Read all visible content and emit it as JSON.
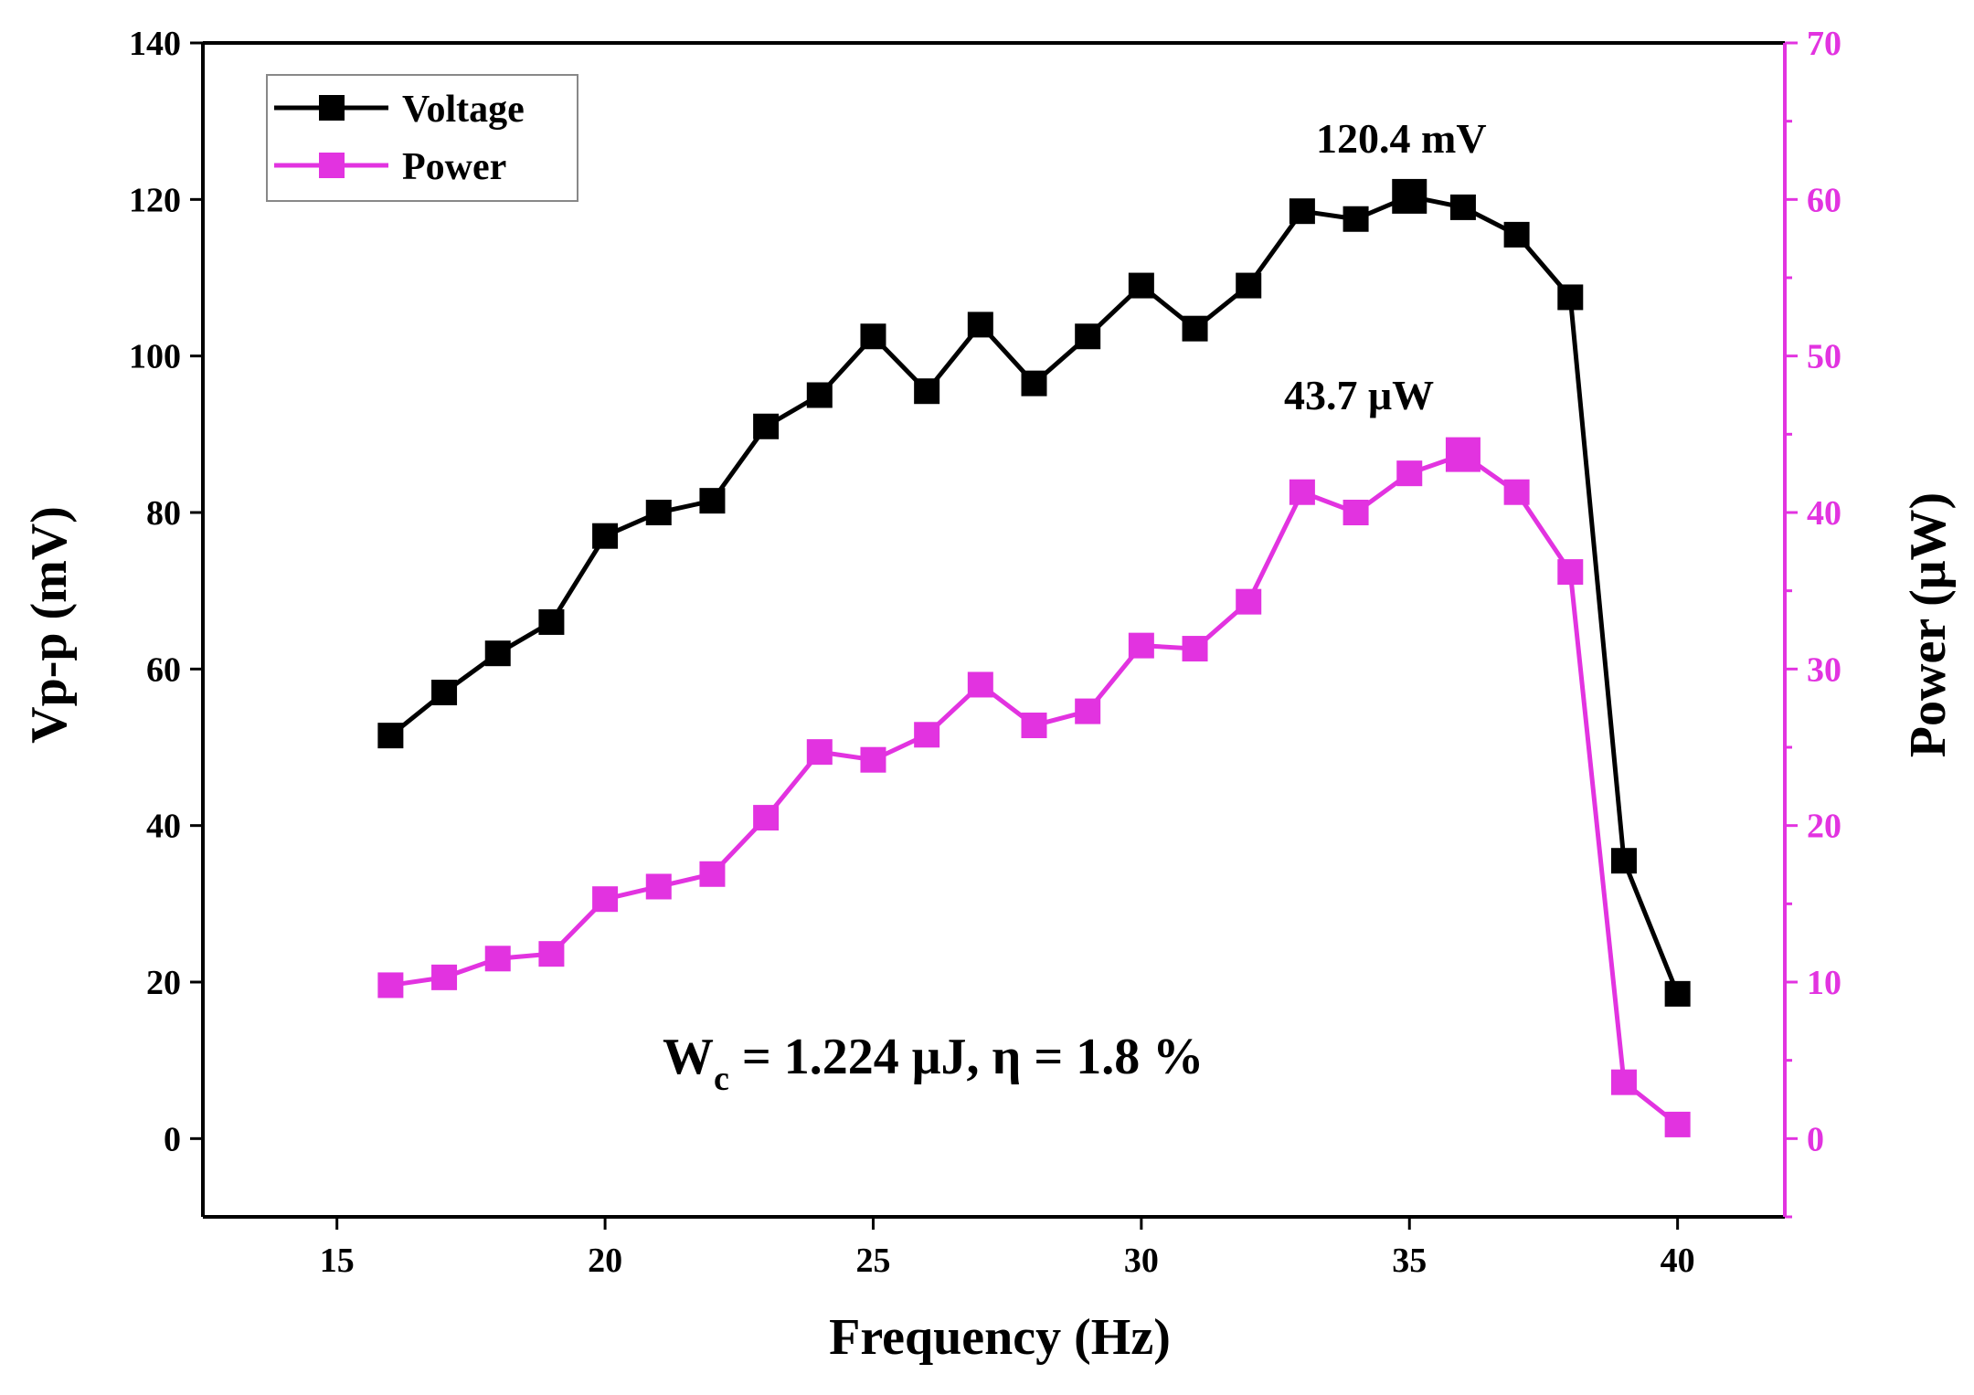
{
  "chart_data": {
    "type": "line",
    "x": [
      16,
      17,
      18,
      19,
      20,
      21,
      22,
      23,
      24,
      25,
      26,
      27,
      28,
      29,
      30,
      31,
      32,
      33,
      34,
      35,
      36,
      37,
      38,
      39,
      40
    ],
    "xlabel": "Frequency (Hz)",
    "xlim": [
      12.5,
      42
    ],
    "xticks": [
      15,
      20,
      25,
      30,
      35,
      40
    ],
    "y_left": {
      "label": "Vp-p (mV)",
      "lim": [
        -10,
        140
      ],
      "ticks": [
        0,
        20,
        40,
        60,
        80,
        100,
        120,
        140
      ],
      "color": "#000000"
    },
    "y_right": {
      "label": "Power (μW)",
      "lim": [
        -5,
        70
      ],
      "ticks": [
        0,
        10,
        20,
        30,
        40,
        50,
        60,
        70
      ],
      "color": "#e233e0"
    },
    "series": [
      {
        "name": "Voltage",
        "axis": "left",
        "color": "#000000",
        "values": [
          51.5,
          57,
          62,
          66,
          77,
          80,
          81.5,
          91,
          95,
          102.5,
          95.5,
          104,
          96.5,
          102.5,
          109,
          103.5,
          109,
          118.5,
          117.5,
          120.4,
          119,
          115.5,
          107.5,
          35.5,
          18.5
        ],
        "peak_index": 19
      },
      {
        "name": "Power",
        "axis": "right",
        "color": "#e233e0",
        "values": [
          9.8,
          10.3,
          11.5,
          11.8,
          15.3,
          16.1,
          16.9,
          20.5,
          24.7,
          24.2,
          25.8,
          29,
          26.4,
          27.3,
          31.5,
          31.3,
          34.3,
          41.3,
          40,
          42.5,
          43.7,
          41.3,
          36.2,
          3.6,
          0.9
        ],
        "peak_index": 20
      }
    ],
    "annotations": {
      "voltage_peak": "120.4 mV",
      "power_peak": "43.7 μW",
      "formula_w": "W",
      "formula_sub": "c",
      "formula_rest": " = 1.224 μJ,  η = 1.8 %"
    },
    "legend": {
      "position": "top-left",
      "entries": [
        "Voltage",
        "Power"
      ]
    }
  }
}
